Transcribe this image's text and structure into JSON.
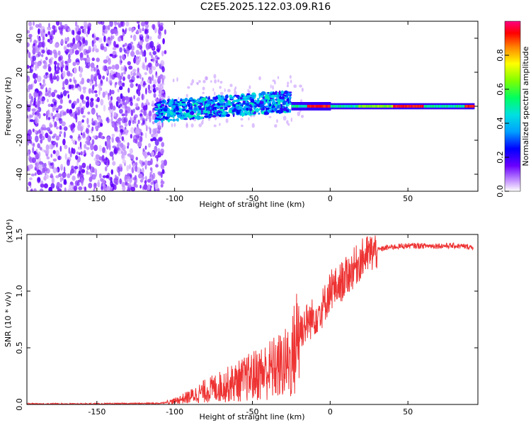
{
  "title": "C2E5.2025.122.03.09.R16",
  "chart_data": [
    {
      "type": "heatmap",
      "xlabel": "Height of straight line (km)",
      "ylabel": "Frequency (Hz)",
      "xlim": [
        -195,
        95
      ],
      "ylim": [
        -50,
        50
      ],
      "x_ticks": [
        "-150",
        "-100",
        "-50",
        "0",
        "50"
      ],
      "y_ticks": [
        "-40",
        "-20",
        "0",
        "20",
        "40"
      ],
      "colorbar": {
        "label": "Normalized spectral amplitude",
        "ticks": [
          "0.0",
          "0.2",
          "0.4",
          "0.6",
          "0.8"
        ],
        "range": [
          0,
          1
        ]
      },
      "regions": [
        {
          "x_range": [
            -195,
            -112
          ],
          "frequency_span": [
            -50,
            50
          ],
          "amplitude": "low (noise)"
        },
        {
          "x_range": [
            -112,
            -25
          ],
          "frequency_center": 2,
          "frequency_halfwidth": 6,
          "amplitude": "0.2-0.5"
        },
        {
          "x_range": [
            -25,
            92
          ],
          "frequency_center": 0,
          "frequency_halfwidth": 2,
          "amplitude": "0.4-1.0"
        }
      ]
    },
    {
      "type": "line",
      "xlabel": "Height of straight line (km)",
      "ylabel": "SNR (10 * v/v)",
      "multiplier": "(x10⁴)",
      "xlim": [
        -195,
        95
      ],
      "ylim": [
        0,
        1.5
      ],
      "x_ticks": [
        "-150",
        "-100",
        "-50",
        "0",
        "50"
      ],
      "y_ticks": [
        "0.0",
        "0.5",
        "1.0",
        "1.5"
      ],
      "series": [
        {
          "color": "#ee3333",
          "x": [
            -195,
            -150,
            -110,
            -100,
            -90,
            -80,
            -70,
            -60,
            -50,
            -40,
            -30,
            -25,
            -20,
            -15,
            -10,
            -5,
            0,
            5,
            10,
            15,
            20,
            25,
            30,
            35,
            40,
            50,
            60,
            70,
            80,
            90
          ],
          "y": [
            0.005,
            0.005,
            0.01,
            0.03,
            0.07,
            0.12,
            0.16,
            0.2,
            0.25,
            0.3,
            0.35,
            0.38,
            0.65,
            0.72,
            0.78,
            0.85,
            1.0,
            1.05,
            1.12,
            1.2,
            1.28,
            1.33,
            1.36,
            1.38,
            1.39,
            1.4,
            1.4,
            1.4,
            1.4,
            1.39
          ]
        }
      ]
    }
  ]
}
